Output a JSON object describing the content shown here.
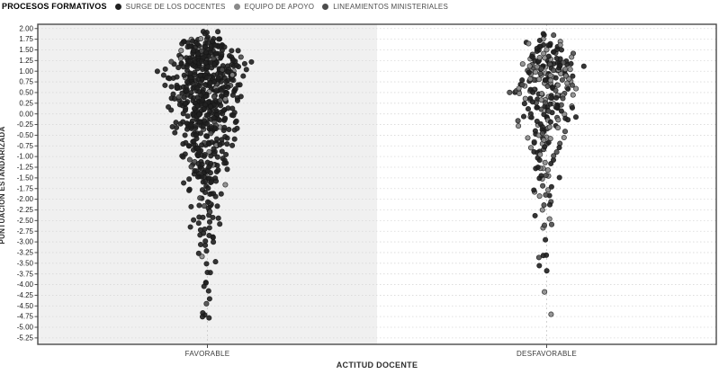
{
  "chart_data": {
    "type": "scatter",
    "variant": "jittered-strip-plot",
    "legend_title": "PROCESOS FORMATIVOS",
    "xlabel": "ACTITUD DOCENTE",
    "ylabel": "PUNTUACION ESTANDARIZADA",
    "categories": [
      "FAVORABLE",
      "DESFAVORABLE"
    ],
    "series": [
      {
        "name": "SURGE DE LOS DOCENTES",
        "color": "#202020"
      },
      {
        "name": "EQUIPO DE APOYO",
        "color": "#8a8a8a"
      },
      {
        "name": "LINEAMIENTOS MINISTERIALES",
        "color": "#4d4d4d"
      }
    ],
    "ylim": [
      -5.4,
      2.1
    ],
    "y_ticks": {
      "max": 2.0,
      "min": -5.25,
      "step": 0.25,
      "decimals": 2
    },
    "grid": {
      "horizontal": true,
      "style": "dotted",
      "color": "#d8d8d8"
    },
    "legend_position": "top-left",
    "panel_colors": [
      "#f0f0f0",
      "#ffffff"
    ],
    "border_color": "#4a4a4a",
    "center_guide_color": "#c8c8c8",
    "tick_color": "#4a4a4a",
    "tick_label_color": "#1a1a1a",
    "category_label_color": "#3a3a3a",
    "point_radius": 2.7,
    "point_stroke": "#161616",
    "jitter_seed": 1337,
    "clusters": [
      {
        "category": "FAVORABLE",
        "n_points_estimate": 600,
        "value_range": [
          -5.0,
          1.9
        ],
        "series_mix": [
          0.88,
          0.06,
          0.06
        ],
        "bands": [
          [
            1.8,
            2.0,
            4,
            22
          ],
          [
            1.5,
            1.8,
            40,
            42
          ],
          [
            1.25,
            1.5,
            55,
            52
          ],
          [
            1.0,
            1.25,
            65,
            58
          ],
          [
            0.75,
            1.0,
            65,
            60
          ],
          [
            0.5,
            0.75,
            58,
            60
          ],
          [
            0.25,
            0.5,
            50,
            58
          ],
          [
            0.0,
            0.25,
            45,
            54
          ],
          [
            -0.25,
            0.0,
            42,
            50
          ],
          [
            -0.5,
            -0.25,
            36,
            46
          ],
          [
            -0.75,
            -0.5,
            30,
            42
          ],
          [
            -1.0,
            -0.75,
            26,
            40
          ],
          [
            -1.25,
            -1.0,
            22,
            36
          ],
          [
            -1.5,
            -1.25,
            18,
            33
          ],
          [
            -1.75,
            -1.5,
            14,
            30
          ],
          [
            -2.0,
            -1.75,
            11,
            28
          ],
          [
            -2.25,
            -2.0,
            9,
            26
          ],
          [
            -2.5,
            -2.25,
            8,
            26
          ],
          [
            -2.75,
            -2.5,
            7,
            24
          ],
          [
            -3.0,
            -2.75,
            6,
            22
          ],
          [
            -3.25,
            -3.0,
            4,
            20
          ],
          [
            -3.5,
            -3.25,
            3,
            18
          ],
          [
            -3.75,
            -3.5,
            3,
            15
          ],
          [
            -4.0,
            -3.75,
            2,
            12
          ],
          [
            -4.25,
            -4.0,
            2,
            12
          ],
          [
            -4.5,
            -4.25,
            2,
            10
          ],
          [
            -4.75,
            -4.5,
            2,
            10
          ],
          [
            -5.0,
            -4.75,
            2,
            8
          ]
        ]
      },
      {
        "category": "DESFAVORABLE",
        "n_points_estimate": 283,
        "value_range": [
          -4.8,
          1.9
        ],
        "series_mix": [
          0.42,
          0.33,
          0.25
        ],
        "bands": [
          [
            1.7,
            1.9,
            5,
            25
          ],
          [
            1.4,
            1.7,
            22,
            35
          ],
          [
            1.15,
            1.4,
            30,
            45
          ],
          [
            0.9,
            1.15,
            35,
            50
          ],
          [
            0.65,
            0.9,
            32,
            52
          ],
          [
            0.4,
            0.65,
            28,
            50
          ],
          [
            0.15,
            0.4,
            24,
            46
          ],
          [
            -0.1,
            0.15,
            20,
            42
          ],
          [
            -0.35,
            -0.1,
            16,
            38
          ],
          [
            -0.6,
            -0.35,
            13,
            34
          ],
          [
            -0.85,
            -0.6,
            11,
            30
          ],
          [
            -1.1,
            -0.85,
            9,
            28
          ],
          [
            -1.35,
            -1.1,
            7,
            26
          ],
          [
            -1.6,
            -1.35,
            6,
            24
          ],
          [
            -1.85,
            -1.6,
            5,
            22
          ],
          [
            -2.1,
            -1.85,
            4,
            20
          ],
          [
            -2.35,
            -2.1,
            3,
            18
          ],
          [
            -2.6,
            -2.35,
            3,
            16
          ],
          [
            -2.9,
            -2.6,
            2,
            14
          ],
          [
            -3.2,
            -2.9,
            1,
            10
          ],
          [
            -3.5,
            -3.2,
            3,
            16
          ],
          [
            -3.8,
            -3.5,
            2,
            14
          ],
          [
            -4.3,
            -4.0,
            1,
            8
          ],
          [
            -4.8,
            -4.6,
            1,
            6
          ]
        ]
      }
    ]
  }
}
